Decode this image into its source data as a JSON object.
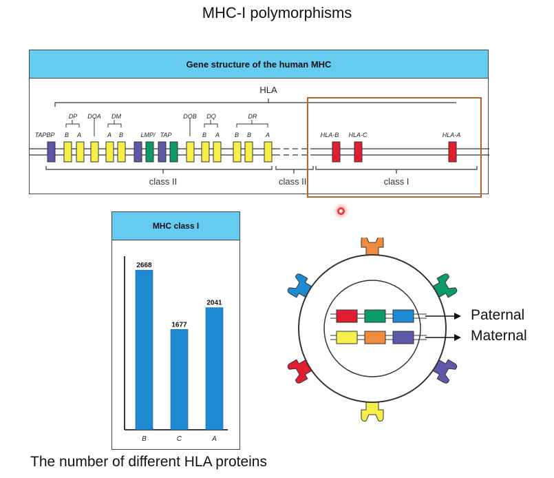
{
  "slide": {
    "title": "MHC-I polymorphisms",
    "caption": "The number of different HLA proteins"
  },
  "gene_structure": {
    "title": "Gene structure of the human MHC",
    "hla_label": "HLA",
    "group_labels": [
      "DP",
      "DOA",
      "DM",
      "DOB",
      "DQ",
      "DR"
    ],
    "gene_labels": [
      "TAPBP",
      "B",
      "A",
      "A",
      "B",
      "LMP/",
      "TAP",
      "B",
      "A",
      "B",
      "B",
      "A",
      "HLA-B",
      "HLA-C",
      "HLA-A"
    ],
    "region_labels": [
      "class II",
      "class III",
      "class I"
    ],
    "colors": {
      "purple": "#5b59a8",
      "yellow": "#f6ef4a",
      "green": "#0c9a66",
      "red": "#e11d30",
      "header": "#66cbf1",
      "highlight": "#b6632a"
    }
  },
  "chart_data": {
    "type": "bar",
    "title": "MHC class I",
    "categories": [
      "B",
      "C",
      "A"
    ],
    "values": [
      2668,
      1677,
      2041
    ],
    "ylim": [
      0,
      2900
    ],
    "color": "#1f8ad4",
    "grid": false
  },
  "cell_diagram": {
    "labels": {
      "paternal": "Paternal",
      "maternal": "Maternal"
    },
    "paternal_colors": [
      "#e11d30",
      "#0c9a66",
      "#1f8ad4"
    ],
    "maternal_colors": [
      "#f6ef4a",
      "#f08a3c",
      "#5b59a8"
    ],
    "receptor_colors": [
      "#f08a3c",
      "#0c9a66",
      "#5b59a8",
      "#f6ef4a",
      "#e11d30",
      "#1f8ad4"
    ]
  }
}
